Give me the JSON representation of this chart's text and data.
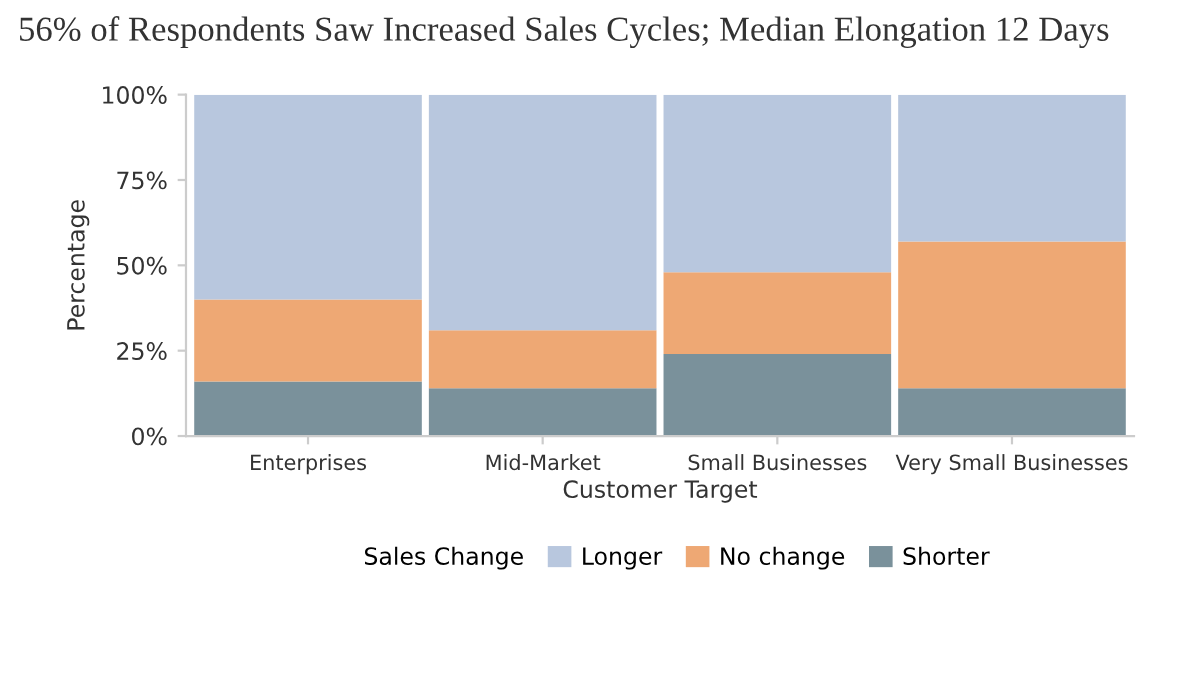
{
  "chart_data": {
    "type": "bar",
    "stacked": true,
    "title": "56% of Respondents Saw Increased Sales Cycles; Median Elongation 12 Days",
    "xlabel": "Customer Target",
    "ylabel": "Percentage",
    "legend_title": "Sales Change",
    "categories": [
      "Enterprises",
      "Mid-Market",
      "Small Businesses",
      "Very Small Businesses"
    ],
    "series": [
      {
        "name": "Shorter",
        "color": "#7a919b",
        "values": [
          16,
          14,
          24,
          14
        ]
      },
      {
        "name": "No change",
        "color": "#eea874",
        "values": [
          24,
          17,
          24,
          43
        ]
      },
      {
        "name": "Longer",
        "color": "#b8c7de",
        "values": [
          60,
          69,
          52,
          43
        ]
      }
    ],
    "ylim": [
      0,
      100
    ],
    "yticks": [
      {
        "value": 0,
        "label": "0%"
      },
      {
        "value": 25,
        "label": "25%"
      },
      {
        "value": 50,
        "label": "50%"
      },
      {
        "value": 75,
        "label": "75%"
      },
      {
        "value": 100,
        "label": "100%"
      }
    ],
    "grid": false,
    "legend": "bottom"
  }
}
